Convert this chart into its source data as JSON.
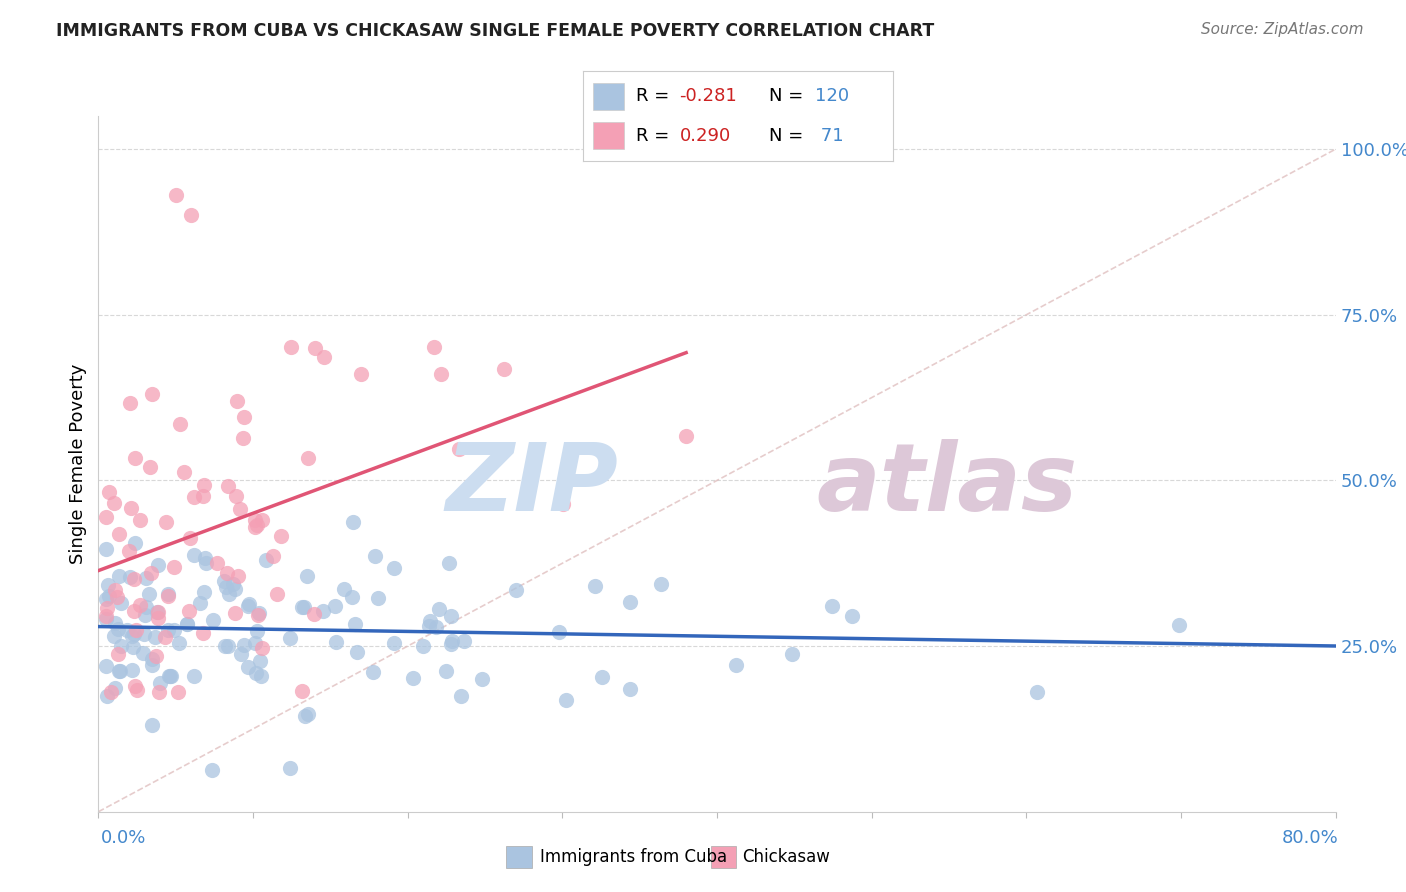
{
  "title": "IMMIGRANTS FROM CUBA VS CHICKASAW SINGLE FEMALE POVERTY CORRELATION CHART",
  "source": "Source: ZipAtlas.com",
  "ylabel": "Single Female Poverty",
  "xlim": [
    0.0,
    0.8
  ],
  "ylim": [
    0.0,
    1.05
  ],
  "blue_R": -0.281,
  "blue_N": 120,
  "pink_R": 0.29,
  "pink_N": 71,
  "blue_color": "#aac4e0",
  "pink_color": "#f4a0b5",
  "blue_line_color": "#3366bb",
  "pink_line_color": "#e05575",
  "tick_label_color": "#4488cc",
  "grid_color": "#d8d8d8",
  "ref_line_color": "#e0c0c0",
  "watermark_zip_color": "#ccddf0",
  "watermark_atlas_color": "#ddc8d8"
}
